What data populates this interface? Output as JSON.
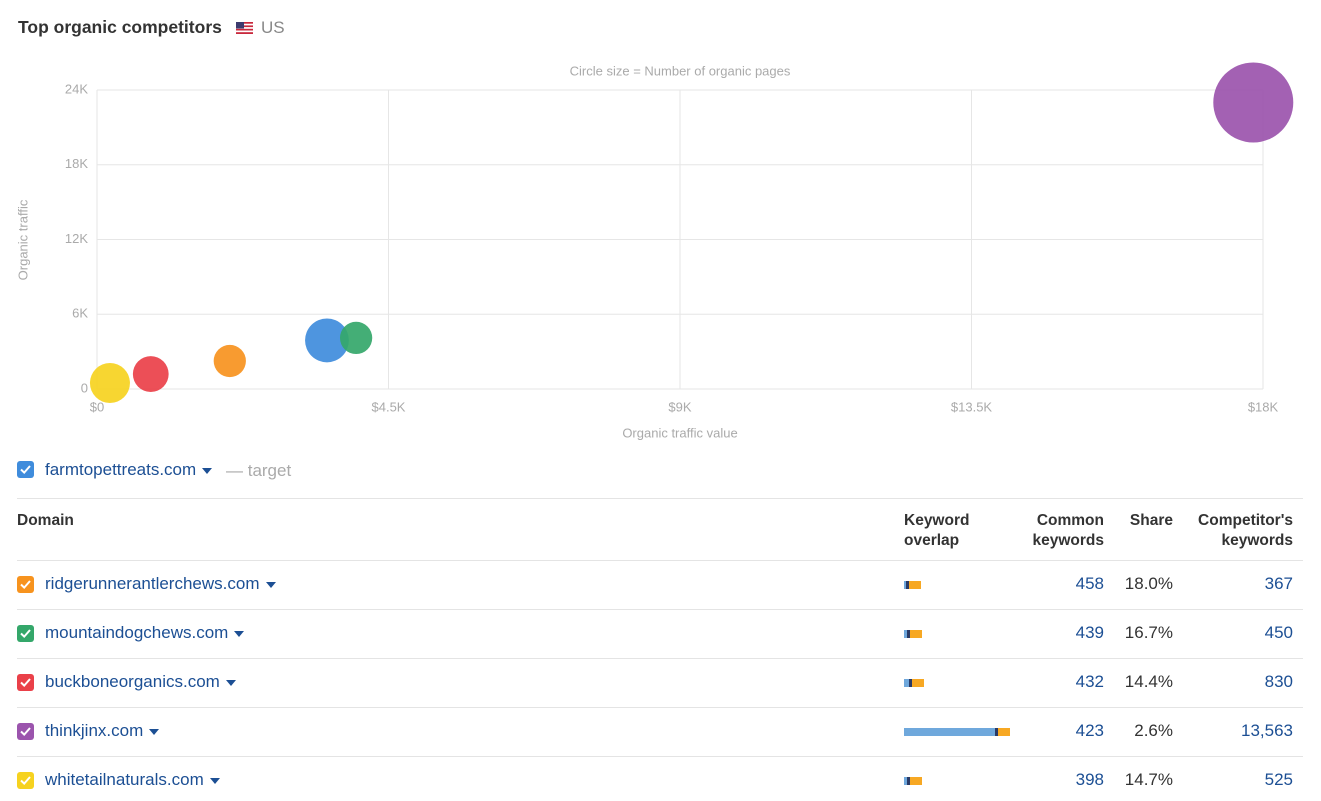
{
  "header": {
    "title": "Top organic competitors",
    "country": "US"
  },
  "chart_data": {
    "type": "bubble",
    "subtitle": "Circle size = Number of organic pages",
    "x_label": "Organic traffic value",
    "y_label": "Organic traffic",
    "x": [
      3550,
      2050,
      4000,
      830,
      17850,
      200
    ],
    "values": [
      3900,
      2250,
      4100,
      1200,
      23000,
      480
    ],
    "sizes": [
      480,
      260,
      260,
      320,
      1600,
      400
    ],
    "colors": [
      "#3f8cdc",
      "#f7931e",
      "#34a76a",
      "#ea4049",
      "#9b54ad",
      "#f6d21f"
    ],
    "xlim": [
      0,
      18000
    ],
    "ylim": [
      0,
      24000
    ],
    "xticks": [
      {
        "value": 0,
        "label": "$0"
      },
      {
        "value": 4500,
        "label": "$4.5K"
      },
      {
        "value": 9000,
        "label": "$9K"
      },
      {
        "value": 13500,
        "label": "$13.5K"
      },
      {
        "value": 18000,
        "label": "$18K"
      }
    ],
    "yticks": [
      0,
      {
        "value": 6000,
        "label": "6K"
      },
      {
        "value": 12000,
        "label": "12K"
      },
      {
        "value": 18000,
        "label": "18K"
      },
      {
        "value": 24000,
        "label": "24K"
      }
    ],
    "grid": true
  },
  "target": {
    "domain": "farmtopettreats.com",
    "label": "— target",
    "color": "#3f8cdc"
  },
  "table": {
    "columns": [
      "Domain",
      "Keyword overlap",
      "Common keywords",
      "Share",
      "Competitor's keywords"
    ],
    "rows": [
      {
        "domain": "ridgerunnerantlerchews.com",
        "color": "#f7931e",
        "overlap": [
          2,
          3,
          12
        ],
        "common": 458,
        "share": "18.0%",
        "competitor_keywords": "367"
      },
      {
        "domain": "mountaindogchews.com",
        "color": "#34a76a",
        "overlap": [
          3,
          3,
          12
        ],
        "common": 439,
        "share": "16.7%",
        "competitor_keywords": "450"
      },
      {
        "domain": "buckboneorganics.com",
        "color": "#ea4049",
        "overlap": [
          5,
          3,
          12
        ],
        "common": 432,
        "share": "14.4%",
        "competitor_keywords": "830"
      },
      {
        "domain": "thinkjinx.com",
        "color": "#9b54ad",
        "overlap": [
          91,
          3,
          12
        ],
        "common": 423,
        "share": "2.6%",
        "competitor_keywords": "13,563"
      },
      {
        "domain": "whitetailnaturals.com",
        "color": "#f6d21f",
        "overlap": [
          3,
          3,
          12
        ],
        "common": 398,
        "share": "14.7%",
        "competitor_keywords": "525"
      }
    ]
  }
}
